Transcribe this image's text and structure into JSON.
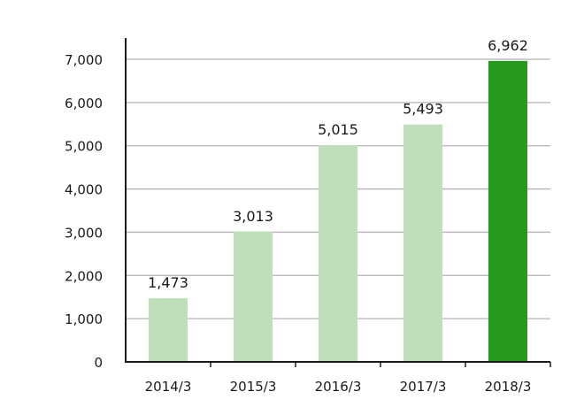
{
  "chart_data": {
    "type": "bar",
    "title": "",
    "xlabel": "",
    "ylabel": "",
    "categories": [
      "2014/3",
      "2015/3",
      "2016/3",
      "2017/3",
      "2018/3"
    ],
    "values": [
      1473,
      3013,
      5015,
      5493,
      6962
    ],
    "data_labels": [
      "1,473",
      "3,013",
      "5,015",
      "5,493",
      "6,962"
    ],
    "ylim": [
      0,
      7000
    ],
    "yticks": [
      0,
      1000,
      2000,
      3000,
      4000,
      5000,
      6000,
      7000
    ],
    "ytick_labels": [
      "0",
      "1,000",
      "2,000",
      "3,000",
      "4,000",
      "5,000",
      "6,000",
      "7,000"
    ],
    "grid": true,
    "legend": "none",
    "colors": {
      "bar": "#bfdfbb",
      "highlight_bar": "#259a1f",
      "grid": "#b3b3b3",
      "axis": "#1a1a1a"
    },
    "highlight_index": 4
  }
}
